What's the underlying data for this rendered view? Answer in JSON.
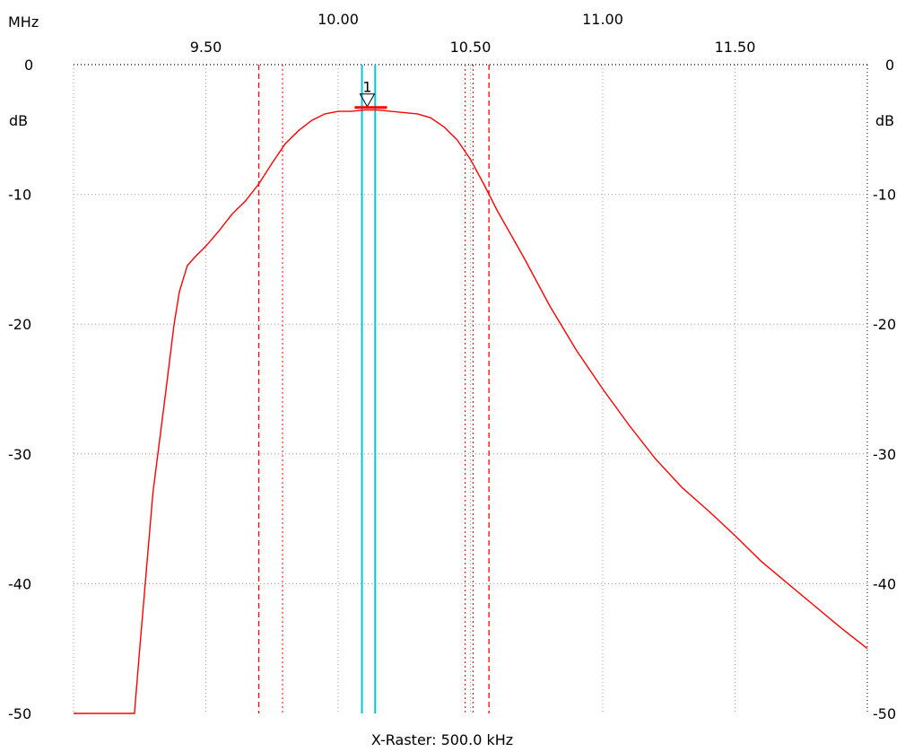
{
  "chart_data": {
    "type": "line",
    "x_unit": "MHz",
    "y_unit": "dB",
    "xlim": [
      9.0,
      12.0
    ],
    "ylim": [
      -50,
      0
    ],
    "x_ticks_top": [
      "10.00",
      "11.00"
    ],
    "x_tick_values_top": [
      10.0,
      11.0
    ],
    "x_ticks_bottom": [
      "9.50",
      "10.50",
      "11.50"
    ],
    "x_tick_values_bottom": [
      9.5,
      10.5,
      11.5
    ],
    "y_ticks": [
      "0",
      "-10",
      "-20",
      "-30",
      "-40",
      "-50"
    ],
    "y_tick_values": [
      0,
      -10,
      -20,
      -30,
      -40,
      -50
    ],
    "grid": true,
    "footer": "X-Raster: 500.0 kHz",
    "marker": {
      "label": "1",
      "x": 10.11,
      "y": -3.3
    },
    "red_dashed_lines": [
      9.7,
      10.57
    ],
    "red_dotted_lines": [
      9.79,
      10.48,
      10.51
    ],
    "cyan_lines": [
      10.09,
      10.14
    ],
    "colors": {
      "trace": "#ff0000",
      "cyan": "#00c8d6",
      "grid": "#a0a0a0"
    },
    "series": [
      {
        "x": [
          9.0,
          9.23,
          9.25,
          9.3,
          9.35,
          9.38,
          9.4,
          9.43,
          9.46,
          9.5,
          9.55,
          9.6,
          9.65,
          9.7,
          9.75,
          9.8,
          9.85,
          9.9,
          9.95,
          10.0,
          10.05,
          10.1,
          10.15,
          10.2,
          10.3,
          10.35,
          10.4,
          10.45,
          10.5,
          10.55,
          10.6,
          10.7,
          10.8,
          10.9,
          11.0,
          11.1,
          11.2,
          11.3,
          11.4,
          11.5,
          11.6,
          11.7,
          11.8,
          11.9,
          12.0
        ],
        "y": [
          -50,
          -50,
          -45,
          -33,
          -25,
          -20,
          -17.5,
          -15.5,
          -14.8,
          -14,
          -12.8,
          -11.5,
          -10.5,
          -9.2,
          -7.6,
          -6.1,
          -5.1,
          -4.3,
          -3.8,
          -3.6,
          -3.6,
          -3.5,
          -3.5,
          -3.6,
          -3.8,
          -4.1,
          -4.8,
          -5.8,
          -7.3,
          -9.2,
          -11.2,
          -14.8,
          -18.6,
          -22.0,
          -25.0,
          -27.8,
          -30.4,
          -32.6,
          -34.4,
          -36.3,
          -38.3,
          -40.0,
          -41.7,
          -43.4,
          -45.0
        ]
      }
    ]
  }
}
